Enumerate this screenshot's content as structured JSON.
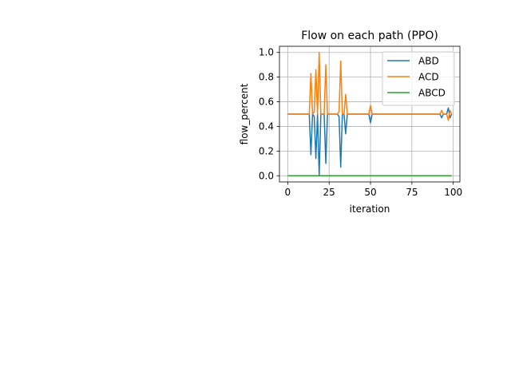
{
  "chart_data": {
    "type": "line",
    "title": "Flow on each path (PPO)",
    "xlabel": "iteration",
    "ylabel": "flow_percent",
    "xlim": [
      -5,
      104
    ],
    "ylim": [
      -0.05,
      1.05
    ],
    "xticks": [
      0,
      25,
      50,
      75,
      100
    ],
    "yticks": [
      0.0,
      0.2,
      0.4,
      0.6,
      0.8,
      1.0
    ],
    "xtick_labels": [
      "0",
      "25",
      "50",
      "75",
      "100"
    ],
    "ytick_labels": [
      "0.0",
      "0.2",
      "0.4",
      "0.6",
      "0.8",
      "1.0"
    ],
    "grid": true,
    "legend_position": "upper right",
    "series": [
      {
        "name": "ABD",
        "color": "#1f77b4",
        "points": [
          [
            0,
            0.5
          ],
          [
            13,
            0.5
          ],
          [
            14,
            0.17
          ],
          [
            15,
            0.5
          ],
          [
            16,
            0.48
          ],
          [
            17,
            0.14
          ],
          [
            18,
            0.5
          ],
          [
            19,
            0.0
          ],
          [
            20,
            0.5
          ],
          [
            22,
            0.5
          ],
          [
            23,
            0.1
          ],
          [
            24,
            0.5
          ],
          [
            30,
            0.5
          ],
          [
            31,
            0.48
          ],
          [
            32,
            0.07
          ],
          [
            33,
            0.5
          ],
          [
            34,
            0.5
          ],
          [
            35,
            0.34
          ],
          [
            36,
            0.5
          ],
          [
            49,
            0.5
          ],
          [
            50,
            0.43
          ],
          [
            51,
            0.5
          ],
          [
            92,
            0.5
          ],
          [
            93,
            0.47
          ],
          [
            94,
            0.5
          ],
          [
            96,
            0.5
          ],
          [
            97,
            0.55
          ],
          [
            98,
            0.47
          ],
          [
            99,
            0.5
          ]
        ]
      },
      {
        "name": "ACD",
        "color": "#ff7f0e",
        "points": [
          [
            0,
            0.5
          ],
          [
            13,
            0.5
          ],
          [
            14,
            0.83
          ],
          [
            15,
            0.5
          ],
          [
            16,
            0.52
          ],
          [
            17,
            0.86
          ],
          [
            18,
            0.5
          ],
          [
            19,
            1.0
          ],
          [
            20,
            0.5
          ],
          [
            22,
            0.5
          ],
          [
            23,
            0.9
          ],
          [
            24,
            0.5
          ],
          [
            30,
            0.5
          ],
          [
            31,
            0.52
          ],
          [
            32,
            0.93
          ],
          [
            33,
            0.5
          ],
          [
            34,
            0.5
          ],
          [
            35,
            0.66
          ],
          [
            36,
            0.5
          ],
          [
            49,
            0.5
          ],
          [
            50,
            0.57
          ],
          [
            51,
            0.5
          ],
          [
            92,
            0.5
          ],
          [
            93,
            0.53
          ],
          [
            94,
            0.5
          ],
          [
            96,
            0.5
          ],
          [
            97,
            0.45
          ],
          [
            98,
            0.53
          ],
          [
            99,
            0.5
          ]
        ]
      },
      {
        "name": "ABCD",
        "color": "#2ca02c",
        "points": [
          [
            0,
            0.0
          ],
          [
            99,
            0.0
          ]
        ]
      }
    ]
  }
}
